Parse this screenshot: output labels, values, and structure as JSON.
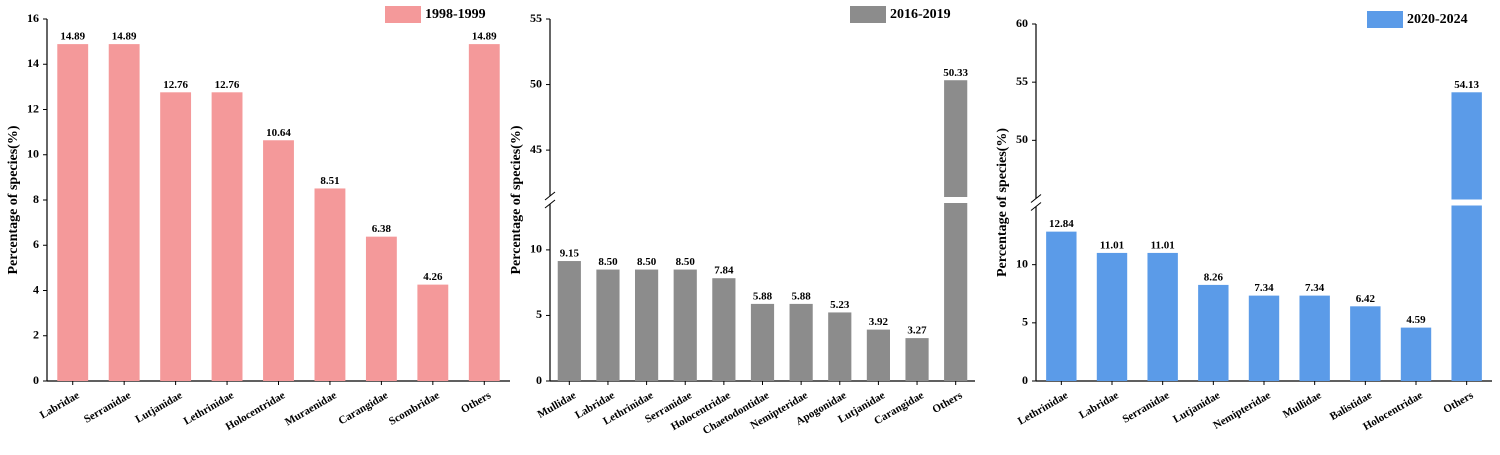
{
  "chart_data": [
    {
      "type": "bar",
      "ylabel": "Percentage of species(%)",
      "categories": [
        "Labridae",
        "Serranidae",
        "Lutjanidae",
        "Lethrinidae",
        "Holocentridae",
        "Muraenidae",
        "Carangidae",
        "Scombridae",
        "Others"
      ],
      "series": [
        {
          "name": "1998-1999",
          "color": "#f4999a",
          "values": [
            14.89,
            14.89,
            12.76,
            12.76,
            10.64,
            8.51,
            6.38,
            4.26,
            14.89
          ],
          "value_labels": [
            "14.89",
            "14.89",
            "12.76",
            "12.76",
            "10.64",
            "8.51",
            "6.38",
            "4.26",
            "14.89"
          ]
        }
      ],
      "ylim": [
        0,
        16
      ],
      "yticks": [
        0,
        2,
        4,
        6,
        8,
        10,
        12,
        14,
        16
      ]
    },
    {
      "type": "bar",
      "ylabel": "Percentage of species(%)",
      "categories": [
        "Mullidae",
        "Labridae",
        "Lethrinidae",
        "Serranidae",
        "Holocentridae",
        "Chaetodontidae",
        "Nemipteridae",
        "Apogonidae",
        "Lutjanidae",
        "Carangidae",
        "Others"
      ],
      "series": [
        {
          "name": "2016-2019",
          "color": "#8c8c8c",
          "values": [
            9.15,
            8.5,
            8.5,
            8.5,
            7.84,
            5.88,
            5.88,
            5.23,
            3.92,
            3.27,
            50.33
          ],
          "value_labels": [
            "9.15",
            "8.50",
            "8.50",
            "8.50",
            "7.84",
            "5.88",
            "5.88",
            "5.23",
            "3.92",
            "3.27",
            "50.33"
          ]
        }
      ],
      "ylim": [
        0,
        55
      ],
      "axis_break": [
        13.5,
        41.5
      ],
      "yticks": [
        0,
        5,
        10,
        45,
        50,
        55
      ]
    },
    {
      "type": "bar",
      "ylabel": "Percentage of species(%)",
      "categories": [
        "Lethrinidae",
        "Labridae",
        "Serranidae",
        "Lutjanidae",
        "Nemipteridae",
        "Mullidae",
        "Balistidae",
        "Holocentridae",
        "Others"
      ],
      "series": [
        {
          "name": "2020-2024",
          "color": "#5b9be8",
          "values": [
            12.84,
            11.01,
            11.01,
            8.26,
            7.34,
            7.34,
            6.42,
            4.59,
            54.13
          ],
          "value_labels": [
            "12.84",
            "11.01",
            "11.01",
            "8.26",
            "7.34",
            "7.34",
            "6.42",
            "4.59",
            "54.13"
          ]
        }
      ],
      "ylim": [
        0,
        60
      ],
      "axis_break": [
        15,
        45
      ],
      "yticks": [
        0,
        5,
        10,
        50,
        55,
        60
      ]
    }
  ]
}
